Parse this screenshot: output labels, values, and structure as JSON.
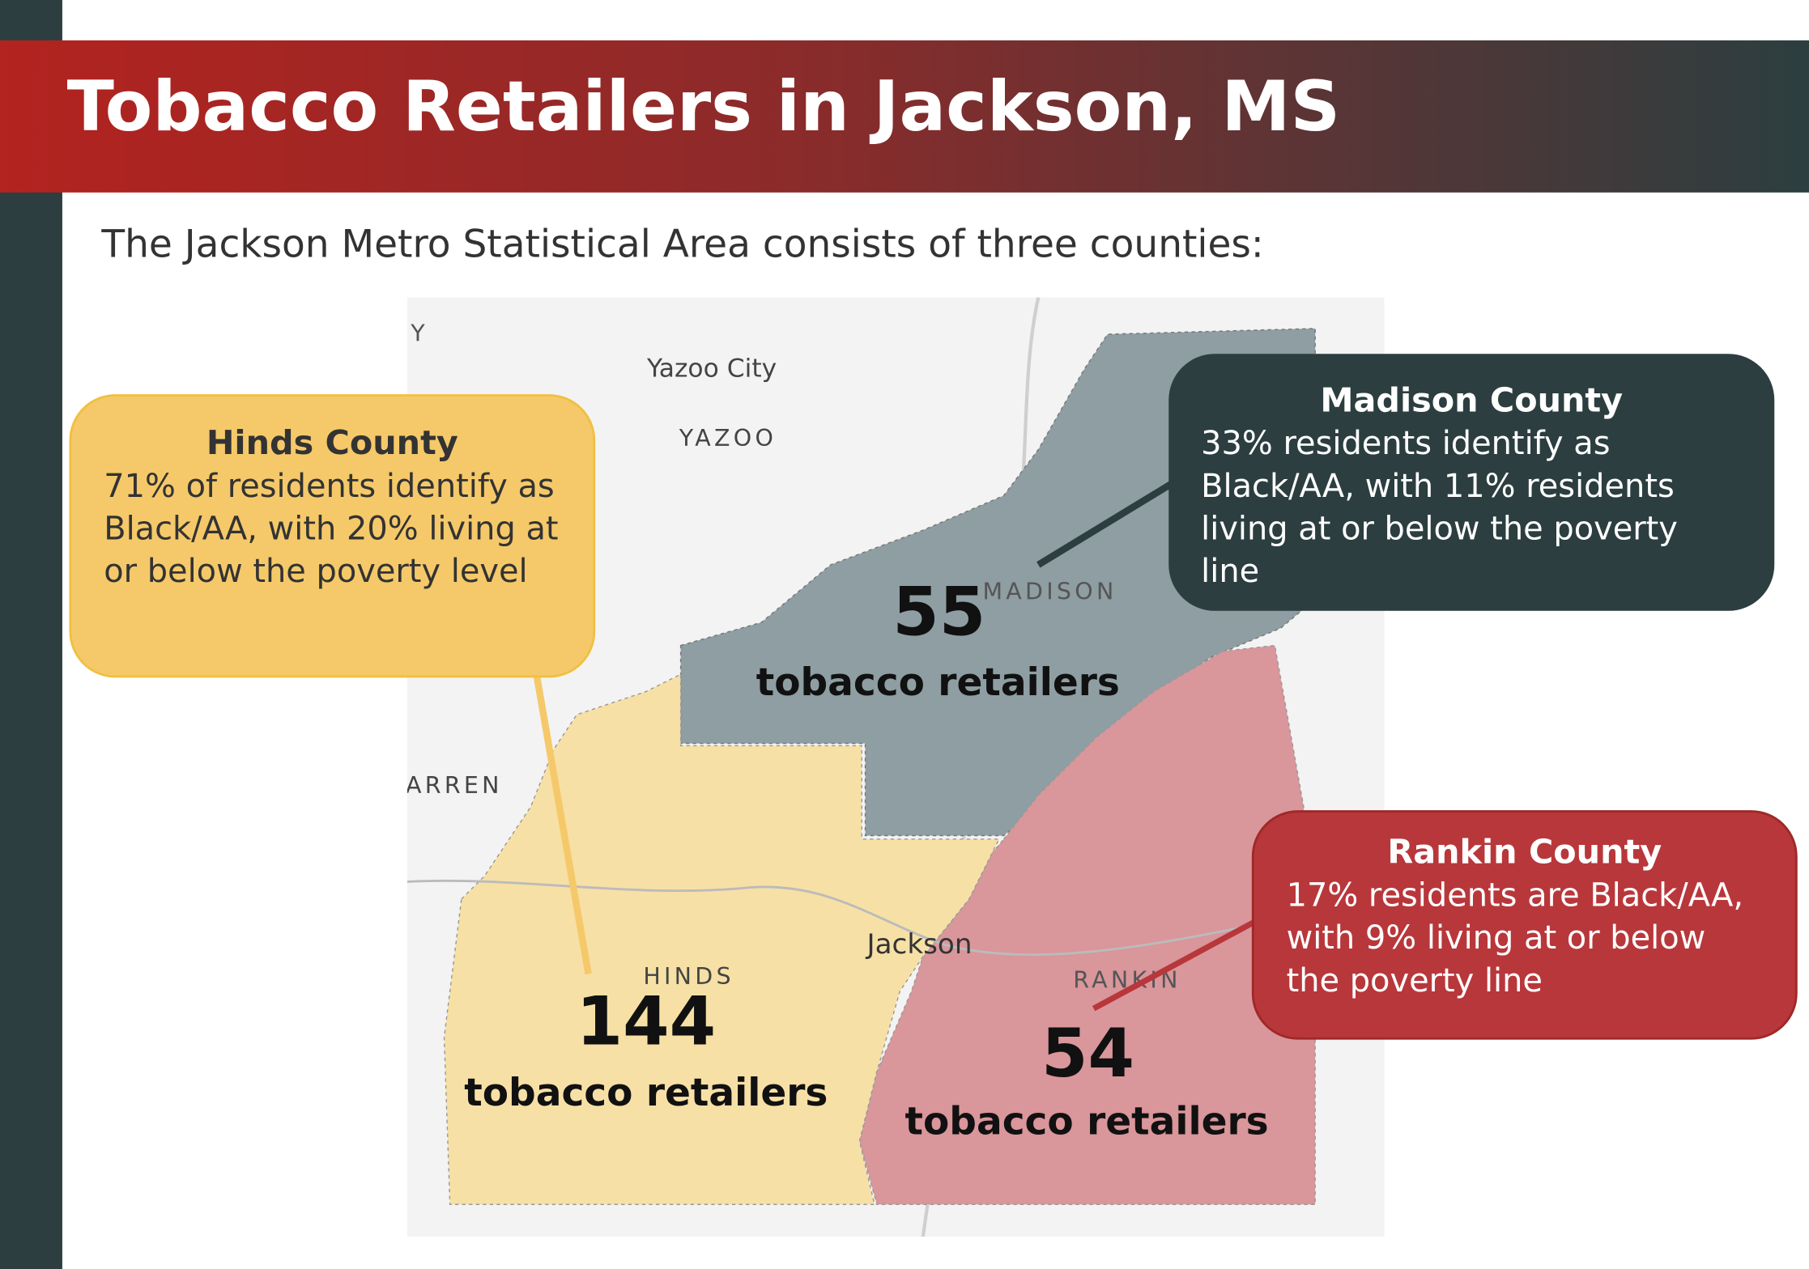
{
  "header": {
    "title": "Tobacco Retailers in Jackson, MS"
  },
  "subtitle": "The Jackson Metro Statistical Area consists of three counties:",
  "map": {
    "labels": [
      "Y",
      "Yazoo City",
      "YAZOO",
      "WARREN",
      "MADISON",
      "Jackson",
      "HINDS",
      "RANKIN"
    ]
  },
  "counties": [
    {
      "name": "Hinds County",
      "description": "71% of residents identify as Black/AA, with 20% living at or below the poverty level",
      "retailers": 144,
      "retailer_label": "tobacco retailers"
    },
    {
      "name": "Madison County",
      "description": "33% residents identify as Black/AA, with 11% residents living at or below the poverty line",
      "retailers": 55,
      "retailer_label": "tobacco retailers"
    },
    {
      "name": "Rankin County",
      "description": "17% residents are Black/AA, with 9% living at or below the poverty line",
      "retailers": 54,
      "retailer_label": "tobacco retailers"
    }
  ]
}
